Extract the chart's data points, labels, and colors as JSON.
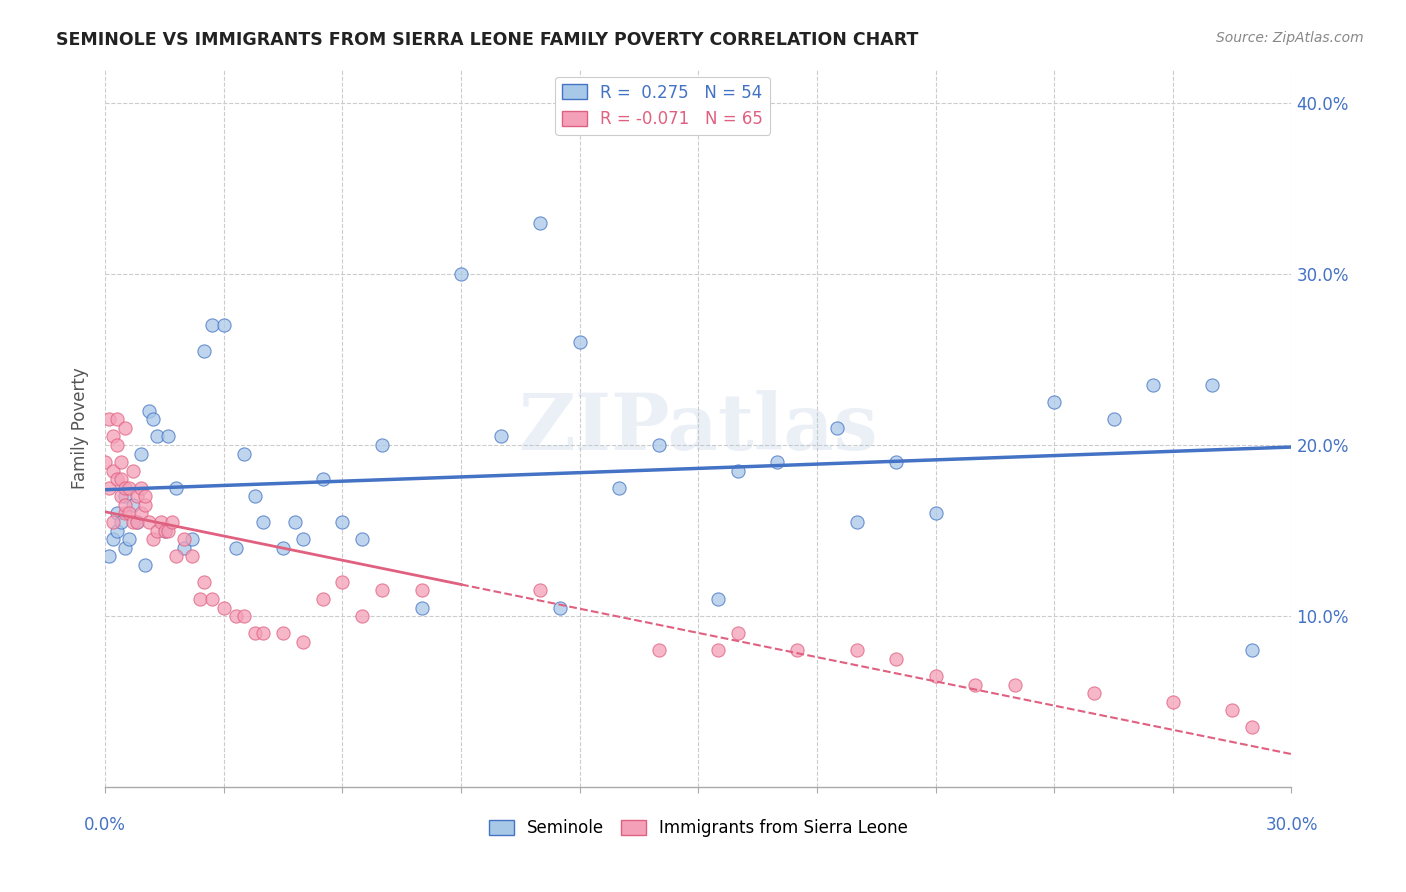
{
  "title": "SEMINOLE VS IMMIGRANTS FROM SIERRA LEONE FAMILY POVERTY CORRELATION CHART",
  "source": "Source: ZipAtlas.com",
  "ylabel": "Family Poverty",
  "legend_blue_label": "R =  0.275   N = 54",
  "legend_pink_label": "R = -0.071   N = 65",
  "seminole_scatter_color": "#a8c8e8",
  "immigrants_scatter_color": "#f4a0b8",
  "seminole_line_color": "#4472c4",
  "immigrants_line_color": "#e06080",
  "background_color": "#ffffff",
  "grid_color": "#cccccc",
  "watermark": "ZIPatlas",
  "xlim": [
    0.0,
    0.3
  ],
  "ylim": [
    0.0,
    0.42
  ],
  "seminole_x": [
    0.001,
    0.002,
    0.003,
    0.003,
    0.004,
    0.005,
    0.005,
    0.006,
    0.007,
    0.008,
    0.009,
    0.01,
    0.011,
    0.012,
    0.013,
    0.015,
    0.016,
    0.018,
    0.02,
    0.022,
    0.025,
    0.027,
    0.03,
    0.033,
    0.035,
    0.038,
    0.04,
    0.045,
    0.048,
    0.05,
    0.055,
    0.06,
    0.065,
    0.07,
    0.08,
    0.09,
    0.1,
    0.11,
    0.115,
    0.12,
    0.13,
    0.14,
    0.155,
    0.16,
    0.17,
    0.185,
    0.19,
    0.2,
    0.21,
    0.24,
    0.255,
    0.265,
    0.28,
    0.29
  ],
  "seminole_y": [
    0.135,
    0.145,
    0.15,
    0.16,
    0.155,
    0.14,
    0.17,
    0.145,
    0.165,
    0.155,
    0.195,
    0.13,
    0.22,
    0.215,
    0.205,
    0.15,
    0.205,
    0.175,
    0.14,
    0.145,
    0.255,
    0.27,
    0.27,
    0.14,
    0.195,
    0.17,
    0.155,
    0.14,
    0.155,
    0.145,
    0.18,
    0.155,
    0.145,
    0.2,
    0.105,
    0.3,
    0.205,
    0.33,
    0.105,
    0.26,
    0.175,
    0.2,
    0.11,
    0.185,
    0.19,
    0.21,
    0.155,
    0.19,
    0.16,
    0.225,
    0.215,
    0.235,
    0.235,
    0.08
  ],
  "immigrants_x": [
    0.0,
    0.001,
    0.001,
    0.002,
    0.002,
    0.002,
    0.003,
    0.003,
    0.003,
    0.004,
    0.004,
    0.004,
    0.005,
    0.005,
    0.005,
    0.005,
    0.006,
    0.006,
    0.007,
    0.007,
    0.008,
    0.008,
    0.009,
    0.009,
    0.01,
    0.01,
    0.011,
    0.012,
    0.013,
    0.014,
    0.015,
    0.016,
    0.017,
    0.018,
    0.02,
    0.022,
    0.024,
    0.025,
    0.027,
    0.03,
    0.033,
    0.035,
    0.038,
    0.04,
    0.045,
    0.05,
    0.055,
    0.06,
    0.065,
    0.07,
    0.08,
    0.11,
    0.14,
    0.155,
    0.16,
    0.175,
    0.19,
    0.2,
    0.21,
    0.22,
    0.23,
    0.25,
    0.27,
    0.285,
    0.29
  ],
  "immigrants_y": [
    0.19,
    0.175,
    0.215,
    0.185,
    0.155,
    0.205,
    0.18,
    0.2,
    0.215,
    0.17,
    0.18,
    0.19,
    0.16,
    0.165,
    0.175,
    0.21,
    0.16,
    0.175,
    0.155,
    0.185,
    0.155,
    0.17,
    0.16,
    0.175,
    0.165,
    0.17,
    0.155,
    0.145,
    0.15,
    0.155,
    0.15,
    0.15,
    0.155,
    0.135,
    0.145,
    0.135,
    0.11,
    0.12,
    0.11,
    0.105,
    0.1,
    0.1,
    0.09,
    0.09,
    0.09,
    0.085,
    0.11,
    0.12,
    0.1,
    0.115,
    0.115,
    0.115,
    0.08,
    0.08,
    0.09,
    0.08,
    0.08,
    0.075,
    0.065,
    0.06,
    0.06,
    0.055,
    0.05,
    0.045,
    0.035
  ]
}
